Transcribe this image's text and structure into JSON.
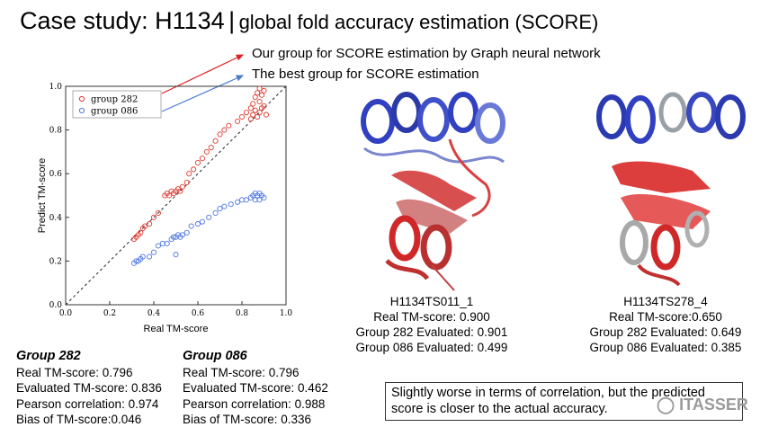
{
  "title": {
    "main": "Case study: H1134",
    "separator": "|",
    "sub": "global fold accuracy estimation (SCORE)"
  },
  "annotations": {
    "ours": "Our group for SCORE estimation by Graph neural network",
    "best": "The best group for SCORE estimation"
  },
  "colors": {
    "group282": "#e03c32",
    "group086": "#5078e0",
    "arrow_red": "#e02020",
    "arrow_blue": "#4a7bd0"
  },
  "chart_data": {
    "type": "scatter",
    "xlabel": "Real TM-score",
    "ylabel": "Predict TM-score",
    "xlim": [
      0.0,
      1.0
    ],
    "ylim": [
      0.0,
      1.0
    ],
    "xticks": [
      "0.0",
      "0.2",
      "0.4",
      "0.6",
      "0.8",
      "1.0"
    ],
    "yticks": [
      "0.0",
      "0.2",
      "0.4",
      "0.6",
      "0.8",
      "1.0"
    ],
    "diagonal": true,
    "legend_position": "top-left",
    "series": [
      {
        "name": "group 282",
        "points": [
          [
            0.31,
            0.3
          ],
          [
            0.32,
            0.31
          ],
          [
            0.33,
            0.32
          ],
          [
            0.34,
            0.33
          ],
          [
            0.35,
            0.35
          ],
          [
            0.36,
            0.36
          ],
          [
            0.38,
            0.37
          ],
          [
            0.4,
            0.4
          ],
          [
            0.42,
            0.42
          ],
          [
            0.45,
            0.5
          ],
          [
            0.46,
            0.51
          ],
          [
            0.47,
            0.5
          ],
          [
            0.48,
            0.52
          ],
          [
            0.49,
            0.51
          ],
          [
            0.5,
            0.52
          ],
          [
            0.51,
            0.53
          ],
          [
            0.52,
            0.52
          ],
          [
            0.53,
            0.54
          ],
          [
            0.55,
            0.56
          ],
          [
            0.56,
            0.6
          ],
          [
            0.58,
            0.62
          ],
          [
            0.6,
            0.65
          ],
          [
            0.62,
            0.67
          ],
          [
            0.64,
            0.7
          ],
          [
            0.66,
            0.72
          ],
          [
            0.68,
            0.75
          ],
          [
            0.7,
            0.78
          ],
          [
            0.72,
            0.8
          ],
          [
            0.74,
            0.82
          ],
          [
            0.78,
            0.84
          ],
          [
            0.8,
            0.86
          ],
          [
            0.82,
            0.88
          ],
          [
            0.84,
            0.9
          ],
          [
            0.85,
            0.92
          ],
          [
            0.86,
            0.95
          ],
          [
            0.87,
            0.97
          ],
          [
            0.88,
            0.93
          ],
          [
            0.89,
            0.96
          ],
          [
            0.9,
            0.98
          ],
          [
            0.86,
            0.89
          ],
          [
            0.87,
            0.86
          ],
          [
            0.88,
            0.88
          ],
          [
            0.89,
            0.9
          ],
          [
            0.9,
            0.91
          ],
          [
            0.91,
            0.87
          ],
          [
            0.85,
            0.87
          ],
          [
            0.84,
            0.85
          ],
          [
            0.88,
            0.99
          ]
        ]
      },
      {
        "name": "group 086",
        "points": [
          [
            0.31,
            0.19
          ],
          [
            0.32,
            0.2
          ],
          [
            0.33,
            0.2
          ],
          [
            0.34,
            0.21
          ],
          [
            0.35,
            0.22
          ],
          [
            0.38,
            0.22
          ],
          [
            0.4,
            0.24
          ],
          [
            0.42,
            0.27
          ],
          [
            0.44,
            0.28
          ],
          [
            0.46,
            0.28
          ],
          [
            0.48,
            0.3
          ],
          [
            0.49,
            0.31
          ],
          [
            0.5,
            0.31
          ],
          [
            0.51,
            0.32
          ],
          [
            0.52,
            0.31
          ],
          [
            0.53,
            0.32
          ],
          [
            0.55,
            0.33
          ],
          [
            0.57,
            0.36
          ],
          [
            0.6,
            0.37
          ],
          [
            0.62,
            0.38
          ],
          [
            0.65,
            0.4
          ],
          [
            0.68,
            0.42
          ],
          [
            0.7,
            0.44
          ],
          [
            0.72,
            0.45
          ],
          [
            0.75,
            0.46
          ],
          [
            0.78,
            0.47
          ],
          [
            0.8,
            0.48
          ],
          [
            0.82,
            0.48
          ],
          [
            0.84,
            0.49
          ],
          [
            0.85,
            0.5
          ],
          [
            0.86,
            0.51
          ],
          [
            0.87,
            0.5
          ],
          [
            0.88,
            0.51
          ],
          [
            0.89,
            0.5
          ],
          [
            0.9,
            0.49
          ],
          [
            0.86,
            0.48
          ],
          [
            0.88,
            0.48
          ],
          [
            0.5,
            0.23
          ]
        ]
      }
    ]
  },
  "models": [
    {
      "name": "H1134TS011_1",
      "real": "Real TM-score: 0.900",
      "g282": "Group 282 Evaluated: 0.901",
      "g086": "Group 086 Evaluated: 0.499"
    },
    {
      "name": "H1134TS278_4",
      "real": "Real TM-score:0.650",
      "g282": "Group 282 Evaluated: 0.649",
      "g086": "Group 086 Evaluated: 0.385"
    }
  ],
  "groups": [
    {
      "header": "Group 282",
      "real": "Real TM-score: 0.796",
      "evaluated": "Evaluated TM-score: 0.836",
      "pearson": "Pearson correlation: 0.974",
      "bias": "Bias of TM-score:0.046"
    },
    {
      "header": "Group 086",
      "real": "Real TM-score: 0.796",
      "evaluated": "Evaluated TM-score: 0.462",
      "pearson": "Pearson correlation: 0.988",
      "bias": "Bias of TM-score: 0.336"
    }
  ],
  "note": {
    "line1": "Slightly worse in terms of correlation, but the predicted",
    "line2": "score is closer to the actual accuracy."
  },
  "watermark": "ITASSER"
}
